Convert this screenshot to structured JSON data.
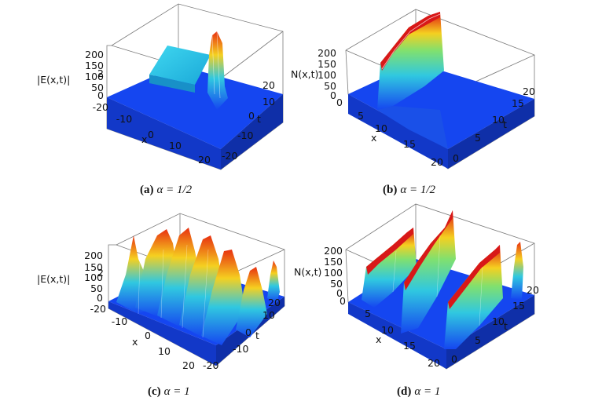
{
  "panels": [
    {
      "id": "a",
      "caption": {
        "label": "(a)",
        "text": "α = 1/2"
      },
      "zlabel": "|E(x,t)|",
      "zlabel_sup": "2",
      "z_ticks": [
        "200",
        "150",
        "100",
        "50",
        "0",
        "-20"
      ],
      "x_ticks": [
        "-20",
        "-10",
        "0",
        "10",
        "20"
      ],
      "x_label": "x",
      "t_ticks": [
        "20",
        "10",
        "0",
        "-10",
        "-20"
      ],
      "t_label": "t"
    },
    {
      "id": "b",
      "caption": {
        "label": "(b)",
        "text": "α = 1/2"
      },
      "zlabel": "N(x,t)",
      "z_ticks": [
        "200",
        "150",
        "100",
        "50",
        "0",
        "0"
      ],
      "x_ticks": [
        "5",
        "10",
        "15",
        "20"
      ],
      "x_label": "x",
      "t_ticks": [
        "20",
        "15",
        "10",
        "5",
        "0"
      ],
      "t_label": "t"
    },
    {
      "id": "c",
      "caption": {
        "label": "(c)",
        "text": "α = 1"
      },
      "zlabel": "|E(x,t)|",
      "zlabel_sup": "2",
      "z_ticks": [
        "200",
        "150",
        "100",
        "50",
        "0",
        "-20"
      ],
      "x_ticks": [
        "-10",
        "0",
        "10",
        "20"
      ],
      "x_label": "x",
      "t_ticks": [
        "20",
        "10",
        "0",
        "-10",
        "-20"
      ],
      "t_label": "t"
    },
    {
      "id": "d",
      "caption": {
        "label": "(d)",
        "text": "α = 1"
      },
      "zlabel": "N(x,t)",
      "z_ticks": [
        "200",
        "150",
        "100",
        "50",
        "0",
        "0"
      ],
      "x_ticks": [
        "5",
        "10",
        "15",
        "20"
      ],
      "x_label": "x",
      "t_ticks": [
        "20",
        "15",
        "10",
        "5",
        "0"
      ],
      "t_label": "t"
    }
  ],
  "colors": {
    "floor": "#1546f0",
    "peak": "#e01010",
    "mid": "#f5d020",
    "low": "#30c8e0"
  }
}
